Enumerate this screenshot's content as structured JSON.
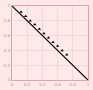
{
  "chart_data": {
    "type": "scatter",
    "xlim": [
      0,
      1
    ],
    "ylim": [
      0,
      1
    ],
    "xticks": [
      0,
      0.2,
      0.4,
      0.6,
      0.8,
      1
    ],
    "yticks": [
      0,
      0.2,
      0.4,
      0.6,
      0.8,
      1
    ],
    "grid": true,
    "series": [
      {
        "type": "scatter",
        "color": "#000000",
        "marker": "triangle-up",
        "x": [
          0.12,
          0.18,
          0.24,
          0.3,
          0.36,
          0.42,
          0.48,
          0.54,
          0.6,
          0.66,
          0.72
        ],
        "values": [
          0.92,
          0.86,
          0.8,
          0.75,
          0.69,
          0.63,
          0.57,
          0.51,
          0.46,
          0.4,
          0.34
        ]
      },
      {
        "type": "line",
        "color": "#000000",
        "line_style": "solid",
        "x": [
          0,
          1
        ],
        "values": [
          1,
          0
        ]
      }
    ]
  }
}
